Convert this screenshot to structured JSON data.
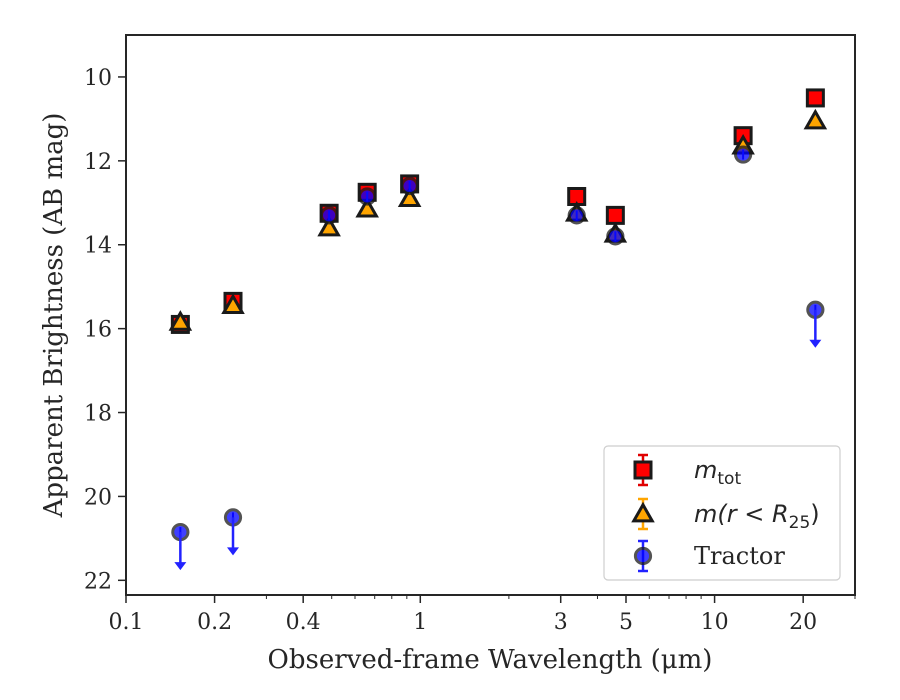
{
  "chart_data": {
    "type": "scatter",
    "xscale": "log",
    "yinverted": true,
    "xlabel": "Observed-frame Wavelength (μm)",
    "ylabel": "Apparent Brightness (AB mag)",
    "xlim": [
      0.1,
      30
    ],
    "ylim": [
      22.35,
      9.0
    ],
    "xticks": [
      0.1,
      0.2,
      0.4,
      1,
      3,
      5,
      10,
      20
    ],
    "xtick_labels": [
      "0.1",
      "0.2",
      "0.4",
      "1",
      "3",
      "5",
      "10",
      "20"
    ],
    "yticks": [
      10,
      12,
      14,
      16,
      18,
      20,
      22
    ],
    "ytick_labels": [
      "10",
      "12",
      "14",
      "16",
      "18",
      "20",
      "22"
    ],
    "legend_position": "lower-right",
    "series": [
      {
        "name": "m_tot",
        "legend_label": {
          "base": "m",
          "sub": "tot"
        },
        "marker": "square",
        "fill": "#ff0000",
        "edge": "#1a1a1a",
        "errcolor": "#e00000",
        "points": [
          {
            "x": 0.153,
            "y": 15.9
          },
          {
            "x": 0.231,
            "y": 15.35
          },
          {
            "x": 0.49,
            "y": 13.25
          },
          {
            "x": 0.66,
            "y": 12.75
          },
          {
            "x": 0.92,
            "y": 12.55
          },
          {
            "x": 3.4,
            "y": 12.85
          },
          {
            "x": 4.6,
            "y": 13.3
          },
          {
            "x": 12.5,
            "y": 11.4
          },
          {
            "x": 22.0,
            "y": 10.5
          }
        ]
      },
      {
        "name": "m(r < R25)",
        "legend_label": {
          "pre": "m(r < R",
          "sub": "25",
          "post": ")"
        },
        "marker": "triangle",
        "fill": "#ffa500",
        "edge": "#1a1a1a",
        "errcolor": "#ffa500",
        "points": [
          {
            "x": 0.153,
            "y": 15.85
          },
          {
            "x": 0.231,
            "y": 15.45
          },
          {
            "x": 0.49,
            "y": 13.6
          },
          {
            "x": 0.66,
            "y": 13.15
          },
          {
            "x": 0.92,
            "y": 12.9
          },
          {
            "x": 3.4,
            "y": 13.25
          },
          {
            "x": 4.6,
            "y": 13.75
          },
          {
            "x": 12.5,
            "y": 11.65
          },
          {
            "x": 22.0,
            "y": 11.05
          }
        ]
      },
      {
        "name": "Tractor",
        "marker": "circle",
        "fill": "#0000ff",
        "edge": "#1a1a1a",
        "errcolor": "#2222ff",
        "points": [
          {
            "x": 0.153,
            "y": 20.85,
            "upper_limit": true
          },
          {
            "x": 0.231,
            "y": 20.5,
            "upper_limit": true
          },
          {
            "x": 0.49,
            "y": 13.3
          },
          {
            "x": 0.66,
            "y": 12.85
          },
          {
            "x": 0.92,
            "y": 12.6
          },
          {
            "x": 3.4,
            "y": 13.3
          },
          {
            "x": 4.6,
            "y": 13.8
          },
          {
            "x": 12.5,
            "y": 11.85
          },
          {
            "x": 22.0,
            "y": 15.55,
            "upper_limit": true
          }
        ]
      }
    ]
  }
}
